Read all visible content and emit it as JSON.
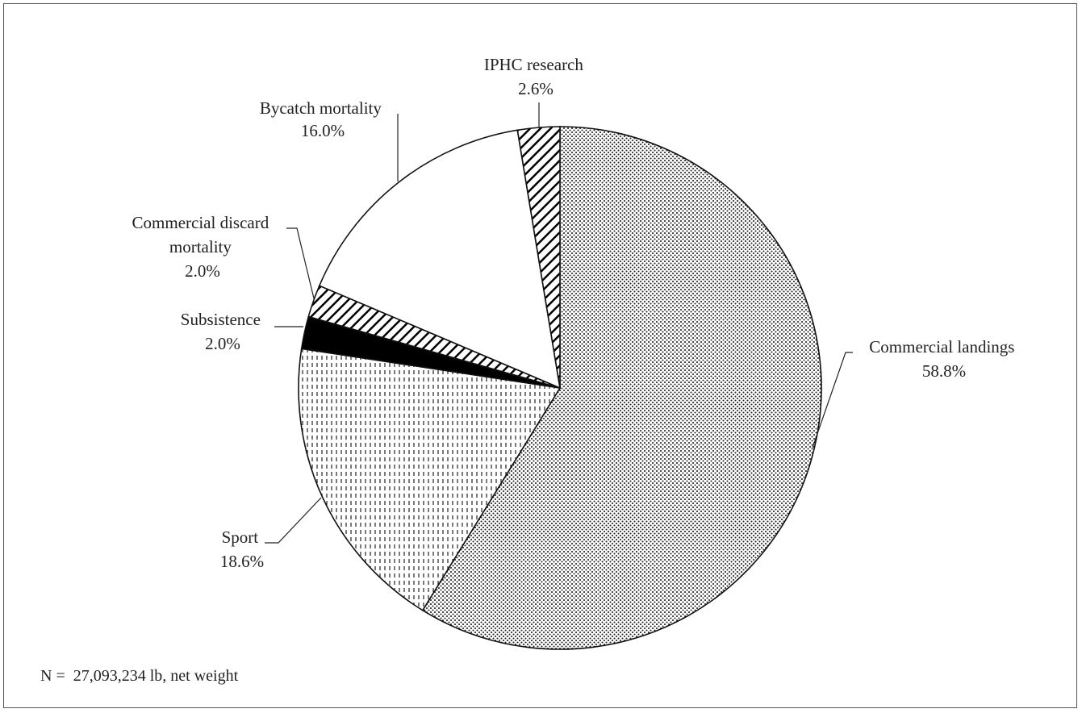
{
  "chart_data": {
    "type": "pie",
    "title": "",
    "start_angle_deg": 0,
    "direction": "clockwise",
    "slices": [
      {
        "label": "Commercial landings",
        "value": 58.8,
        "display": "58.8%",
        "fill": "dots",
        "color": "#222222"
      },
      {
        "label": "Sport",
        "value": 18.6,
        "display": "18.6%",
        "fill": "dashes",
        "color": "#222222"
      },
      {
        "label": "Subsistence",
        "value": 2.0,
        "display": "2.0%",
        "fill": "solid",
        "color": "#000000"
      },
      {
        "label": "Commercial discard mortality",
        "value": 2.0,
        "display": "2.0%",
        "fill": "hatch",
        "color": "#000000"
      },
      {
        "label": "Bycatch mortality",
        "value": 16.0,
        "display": "16.0%",
        "fill": "blank",
        "color": "#ffffff"
      },
      {
        "label": "IPHC research",
        "value": 2.6,
        "display": "2.6%",
        "fill": "hatch",
        "color": "#000000"
      }
    ],
    "labels": {
      "commercial_landings": [
        "Commercial landings",
        "58.8%"
      ],
      "sport": [
        "Sport",
        "18.6%"
      ],
      "subsistence": [
        "Subsistence",
        "2.0%"
      ],
      "commercial_discard": [
        "Commercial discard",
        "mortality",
        "2.0%"
      ],
      "bycatch": [
        "Bycatch mortality",
        "16.0%"
      ],
      "iphc_research": [
        "IPHC research",
        "2.6%"
      ]
    }
  },
  "footnote": "N =  27,093,234 lb, net weight"
}
